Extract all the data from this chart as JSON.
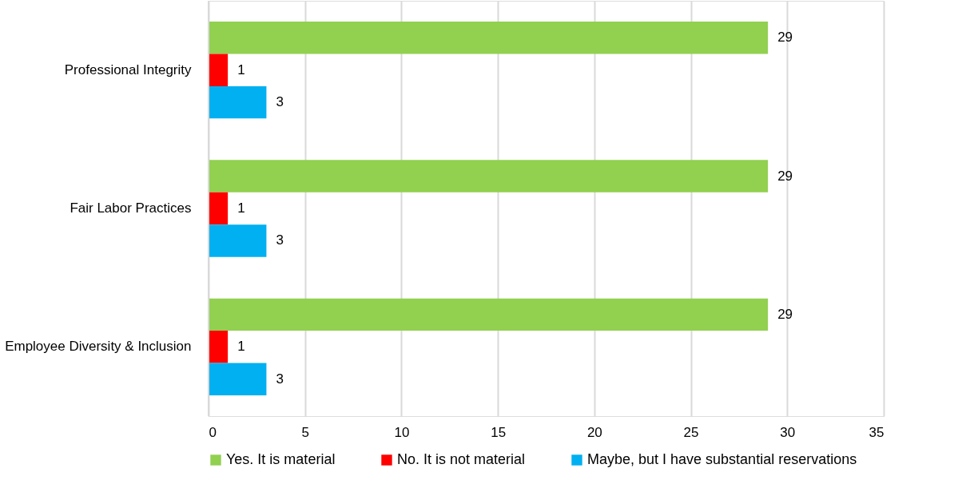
{
  "chart_data": {
    "type": "bar",
    "orientation": "horizontal",
    "categories": [
      "Professional Integrity",
      "Fair Labor Practices",
      "Employee Diversity & Inclusion"
    ],
    "series": [
      {
        "name": "Yes. It is material",
        "color": "#92d050",
        "values": [
          29,
          29,
          29
        ]
      },
      {
        "name": "No. It is not material",
        "color": "#ff0000",
        "values": [
          1,
          1,
          1
        ]
      },
      {
        "name": "Maybe, but I have substantial reservations",
        "color": "#00b0f0",
        "values": [
          3,
          3,
          3
        ]
      }
    ],
    "xlim": [
      0,
      35
    ],
    "xticks": [
      0,
      5,
      10,
      15,
      20,
      25,
      30,
      35
    ],
    "grid": "x",
    "legend": "bottom",
    "data_labels": true
  }
}
